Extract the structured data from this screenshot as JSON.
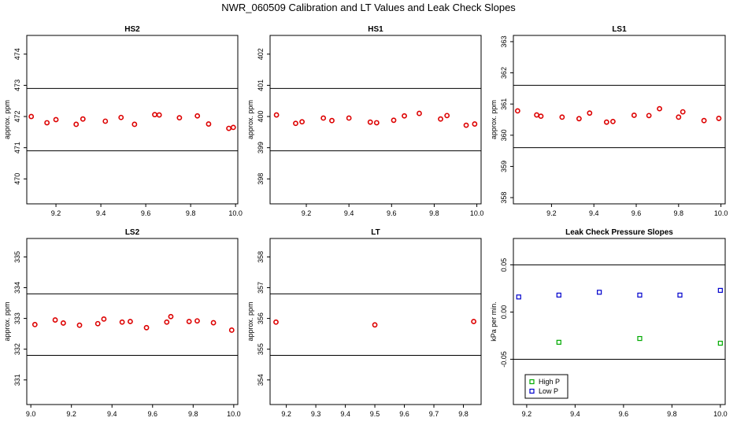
{
  "figure_title": "NWR_060509  Calibration and LT Values and Leak Check Slopes",
  "chart_data": [
    {
      "type": "scatter",
      "title": "HS2",
      "xlabel": "",
      "ylabel": "approx. ppm",
      "xlim": [
        9.07,
        10.01
      ],
      "ylim": [
        469.2,
        474.6
      ],
      "xticks": [
        "9.2",
        "9.4",
        "9.6",
        "9.8",
        "10.0"
      ],
      "yticks": [
        "470",
        "471",
        "472",
        "473",
        "474"
      ],
      "hlines": [
        472.9,
        470.9
      ],
      "marker_color": "#dd0000",
      "series": [
        {
          "x": [
            9.09,
            9.16,
            9.2,
            9.29,
            9.32,
            9.42,
            9.49,
            9.55,
            9.64,
            9.66,
            9.75,
            9.83,
            9.88,
            9.97,
            9.99
          ],
          "y": [
            472.0,
            471.8,
            471.9,
            471.75,
            471.92,
            471.85,
            471.97,
            471.75,
            472.06,
            472.05,
            471.96,
            472.02,
            471.76,
            471.62,
            471.65
          ]
        }
      ]
    },
    {
      "type": "scatter",
      "title": "HS1",
      "xlabel": "",
      "ylabel": "approx. ppm",
      "xlim": [
        9.03,
        10.02
      ],
      "ylim": [
        397.2,
        402.6
      ],
      "xticks": [
        "9.2",
        "9.4",
        "9.6",
        "9.8",
        "10.0"
      ],
      "yticks": [
        "398",
        "399",
        "400",
        "401",
        "402"
      ],
      "hlines": [
        400.9,
        398.9
      ],
      "marker_color": "#dd0000",
      "series": [
        {
          "x": [
            9.06,
            9.15,
            9.18,
            9.28,
            9.32,
            9.4,
            9.5,
            9.53,
            9.61,
            9.66,
            9.73,
            9.83,
            9.86,
            9.95,
            9.99
          ],
          "y": [
            400.05,
            399.78,
            399.83,
            399.95,
            399.87,
            399.95,
            399.82,
            399.8,
            399.88,
            400.02,
            400.1,
            399.92,
            400.03,
            399.72,
            399.76
          ]
        }
      ]
    },
    {
      "type": "scatter",
      "title": "LS1",
      "xlabel": "",
      "ylabel": "approx. ppm",
      "xlim": [
        9.02,
        10.02
      ],
      "ylim": [
        357.8,
        363.2
      ],
      "xticks": [
        "9.2",
        "9.4",
        "9.6",
        "9.8",
        "10.0"
      ],
      "yticks": [
        "358",
        "359",
        "360",
        "361",
        "362",
        "363"
      ],
      "hlines": [
        361.6,
        359.6
      ],
      "marker_color": "#dd0000",
      "series": [
        {
          "x": [
            9.04,
            9.13,
            9.15,
            9.25,
            9.33,
            9.38,
            9.46,
            9.49,
            9.59,
            9.66,
            9.71,
            9.8,
            9.82,
            9.92,
            9.99
          ],
          "y": [
            360.78,
            360.65,
            360.61,
            360.58,
            360.53,
            360.71,
            360.42,
            360.44,
            360.64,
            360.63,
            360.85,
            360.58,
            360.75,
            360.47,
            360.54
          ]
        }
      ]
    },
    {
      "type": "scatter",
      "title": "LS2",
      "xlabel": "",
      "ylabel": "approx. ppm",
      "xlim": [
        8.98,
        10.02
      ],
      "ylim": [
        330.2,
        335.6
      ],
      "xticks": [
        "9.0",
        "9.2",
        "9.4",
        "9.6",
        "9.8",
        "10.0"
      ],
      "yticks": [
        "331",
        "332",
        "333",
        "334",
        "335"
      ],
      "hlines": [
        333.8,
        331.8
      ],
      "marker_color": "#dd0000",
      "series": [
        {
          "x": [
            9.02,
            9.12,
            9.16,
            9.24,
            9.33,
            9.36,
            9.45,
            9.49,
            9.57,
            9.67,
            9.69,
            9.78,
            9.82,
            9.9,
            9.99
          ],
          "y": [
            332.8,
            332.95,
            332.85,
            332.78,
            332.83,
            332.98,
            332.88,
            332.9,
            332.7,
            332.88,
            333.06,
            332.9,
            332.92,
            332.86,
            332.62
          ]
        }
      ]
    },
    {
      "type": "scatter",
      "title": "LT",
      "xlabel": "",
      "ylabel": "approx. ppm",
      "xlim": [
        9.145,
        9.86
      ],
      "ylim": [
        353.2,
        358.6
      ],
      "xticks": [
        "9.2",
        "9.3",
        "9.4",
        "9.5",
        "9.6",
        "9.7",
        "9.8"
      ],
      "yticks": [
        "354",
        "355",
        "356",
        "357",
        "358"
      ],
      "hlines": [
        356.8,
        354.8
      ],
      "marker_color": "#dd0000",
      "series": [
        {
          "x": [
            9.165,
            9.5,
            9.835
          ],
          "y": [
            355.88,
            355.79,
            355.9
          ]
        }
      ]
    },
    {
      "type": "scatter",
      "title": "Leak Check Pressure Slopes",
      "xlabel": "",
      "ylabel": "kPa per min.",
      "xlim": [
        9.145,
        10.02
      ],
      "ylim": [
        -0.098,
        0.078
      ],
      "xticks": [
        "9.2",
        "9.4",
        "9.6",
        "9.8",
        "10.0"
      ],
      "yticks": [
        "-0.05",
        "0.00",
        "0.05"
      ],
      "hlines": [
        0.05,
        -0.05
      ],
      "legend_position": "bottom-left",
      "series": [
        {
          "name": "High P",
          "color": "#00aa00",
          "marker": "square",
          "x": [
            9.333,
            9.667,
            10.0
          ],
          "y": [
            -0.032,
            -0.028,
            -0.033
          ]
        },
        {
          "name": "Low P",
          "color": "#0000cc",
          "marker": "square",
          "x": [
            9.167,
            9.333,
            9.5,
            9.667,
            9.833,
            10.0
          ],
          "y": [
            0.016,
            0.018,
            0.021,
            0.018,
            0.018,
            0.023
          ]
        }
      ]
    }
  ]
}
